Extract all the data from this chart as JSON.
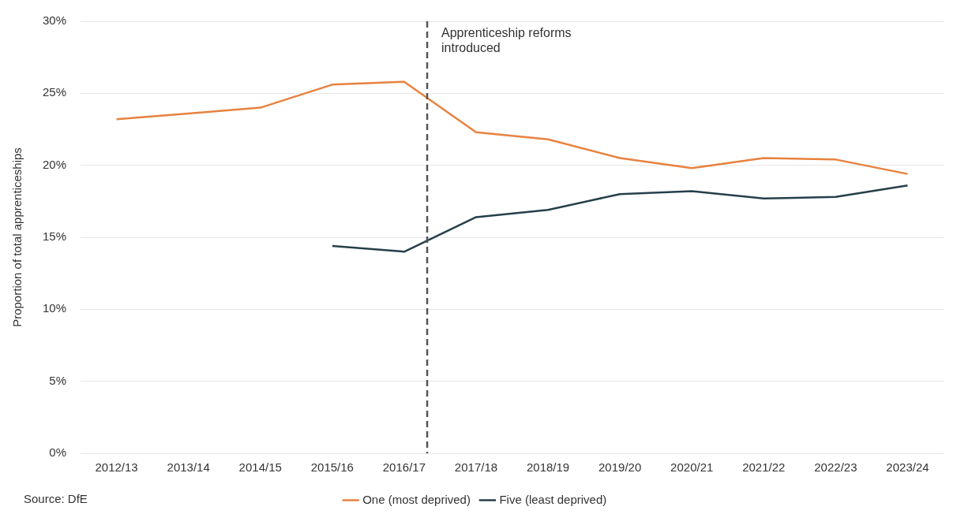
{
  "chart_data": {
    "type": "line",
    "ylabel": "Proportion of total apprenticeships",
    "categories": [
      "2012/13",
      "2013/14",
      "2014/15",
      "2015/16",
      "2016/17",
      "2017/18",
      "2018/19",
      "2019/20",
      "2020/21",
      "2021/22",
      "2022/23",
      "2023/24"
    ],
    "series": [
      {
        "name": "One (most deprived)",
        "color": "#e8823f",
        "values": [
          23.2,
          23.6,
          24.0,
          25.6,
          25.8,
          22.3,
          21.8,
          20.5,
          19.8,
          20.5,
          20.4,
          19.4
        ]
      },
      {
        "name": "Five (least deprived)",
        "color": "#263f4a",
        "values": [
          null,
          null,
          null,
          14.4,
          14.0,
          16.4,
          16.9,
          18.0,
          18.2,
          17.7,
          17.8,
          18.6
        ]
      }
    ],
    "ylim": [
      0,
      30
    ],
    "yticks": [
      {
        "value": 0,
        "label": "0%"
      },
      {
        "value": 5,
        "label": "5%"
      },
      {
        "value": 10,
        "label": "10%"
      },
      {
        "value": 15,
        "label": "15%"
      },
      {
        "value": 20,
        "label": "20%"
      },
      {
        "value": 25,
        "label": "25%"
      },
      {
        "value": 30,
        "label": "30%"
      }
    ],
    "ref_lines": [
      {
        "axis": "x",
        "value": "2016/17",
        "label": "Apprenticeship reforms introduced",
        "color": "#555555",
        "line_style": "dashed"
      }
    ],
    "annotations": [
      "Source: DfE"
    ],
    "grid": "y",
    "legend": "bottom",
    "marker": "none",
    "line_style": "solid"
  }
}
